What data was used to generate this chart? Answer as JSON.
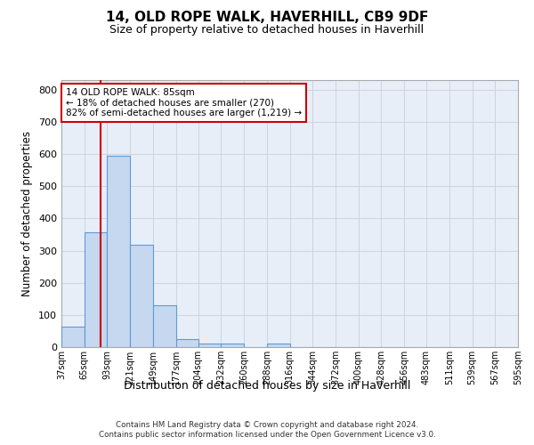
{
  "title": "14, OLD ROPE WALK, HAVERHILL, CB9 9DF",
  "subtitle": "Size of property relative to detached houses in Haverhill",
  "xlabel": "Distribution of detached houses by size in Haverhill",
  "ylabel": "Number of detached properties",
  "bin_edges": [
    37,
    65,
    93,
    121,
    149,
    177,
    204,
    232,
    260,
    288,
    316,
    344,
    372,
    400,
    428,
    456,
    483,
    511,
    539,
    567,
    595
  ],
  "bar_heights": [
    65,
    358,
    595,
    318,
    130,
    25,
    10,
    10,
    0,
    10,
    0,
    0,
    0,
    0,
    0,
    0,
    0,
    0,
    0,
    0
  ],
  "bar_color": "#c5d8f0",
  "bar_edge_color": "#5b9bd5",
  "grid_color": "#c8d0de",
  "bg_color": "#e8eef8",
  "property_line_x": 85,
  "property_line_color": "#cc0000",
  "annotation_text": "14 OLD ROPE WALK: 85sqm\n← 18% of detached houses are smaller (270)\n82% of semi-detached houses are larger (1,219) →",
  "annotation_box_color": "#cc0000",
  "ylim": [
    0,
    830
  ],
  "yticks": [
    0,
    100,
    200,
    300,
    400,
    500,
    600,
    700,
    800
  ],
  "footer_line1": "Contains HM Land Registry data © Crown copyright and database right 2024.",
  "footer_line2": "Contains public sector information licensed under the Open Government Licence v3.0."
}
